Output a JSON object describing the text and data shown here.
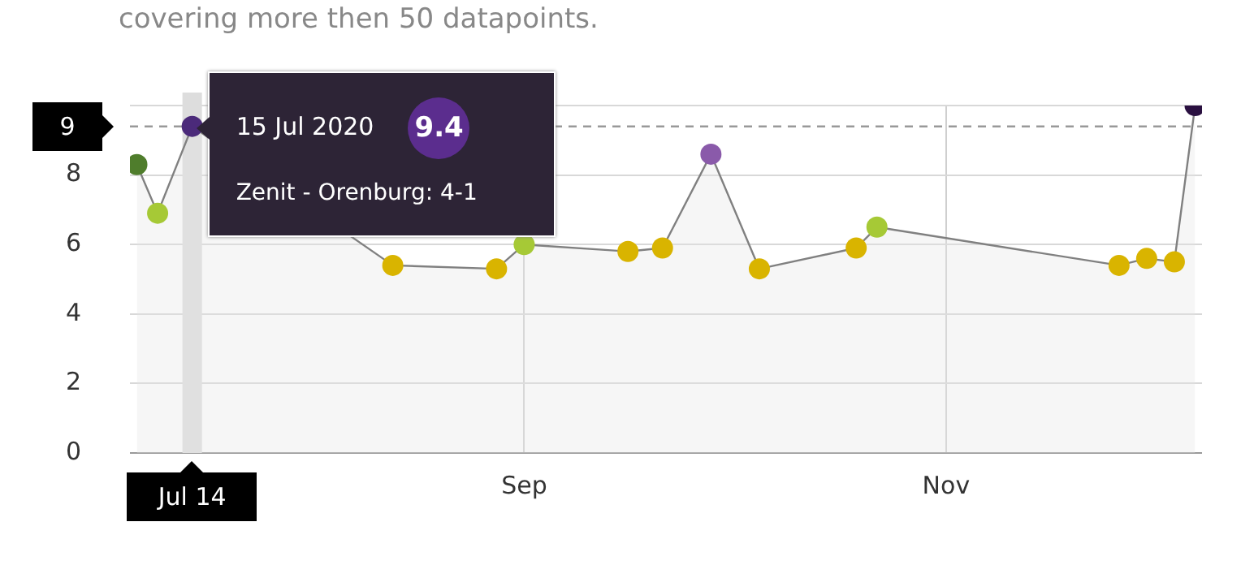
{
  "chart_data": {
    "type": "area",
    "subtitle": "covering more then 50 datapoints.",
    "xlim": [
      "2020-07-06",
      "2020-12-08"
    ],
    "xticks": [
      {
        "value": "2020-09-01",
        "label": "Sep"
      },
      {
        "value": "2020-11-01",
        "label": "Nov"
      }
    ],
    "ylim": [
      0,
      10
    ],
    "yticks": [
      0,
      2,
      4,
      6,
      8,
      {
        "value": 10,
        "label": null
      }
    ],
    "grid": true,
    "marker": "circle",
    "legend": false,
    "series": [
      {
        "color": "#808080",
        "x": [
          "2020-07-07",
          "2020-07-10",
          "2020-07-15",
          "2020-08-13",
          "2020-08-28",
          "2020-09-01",
          "2020-09-16",
          "2020-09-21",
          "2020-09-28",
          "2020-10-05",
          "2020-10-19",
          "2020-10-22",
          "2020-11-26",
          "2020-11-30",
          "2020-12-04",
          "2020-12-07"
        ],
        "values": [
          8.3,
          6.9,
          9.4,
          5.4,
          5.3,
          6.0,
          5.8,
          5.9,
          8.6,
          5.3,
          5.9,
          6.5,
          5.4,
          5.6,
          5.5,
          10.0
        ],
        "colors": [
          "#4f7d2c",
          "#a6c936",
          "#4b2a7a",
          "#d9b400",
          "#d9b400",
          "#a6c936",
          "#d9b400",
          "#d9b400",
          "#8a5aaa",
          "#d9b400",
          "#d9b400",
          "#a6c936",
          "#d9b400",
          "#d9b400",
          "#d9b400",
          "#2a1040"
        ]
      }
    ],
    "ref_lines": [
      {
        "axis": "y",
        "value": 9.4,
        "label": "9",
        "line_style": "dashed",
        "color": "#999999"
      },
      {
        "axis": "x",
        "value": "2020-07-15",
        "label": "Jul 14",
        "color": "#dddddd"
      }
    ],
    "annotations": [
      {
        "text": "15 Jul 2020",
        "x": "2020-07-15",
        "y": 9.4
      },
      "9.4",
      "Zenit - Orenburg: 4-1"
    ]
  }
}
